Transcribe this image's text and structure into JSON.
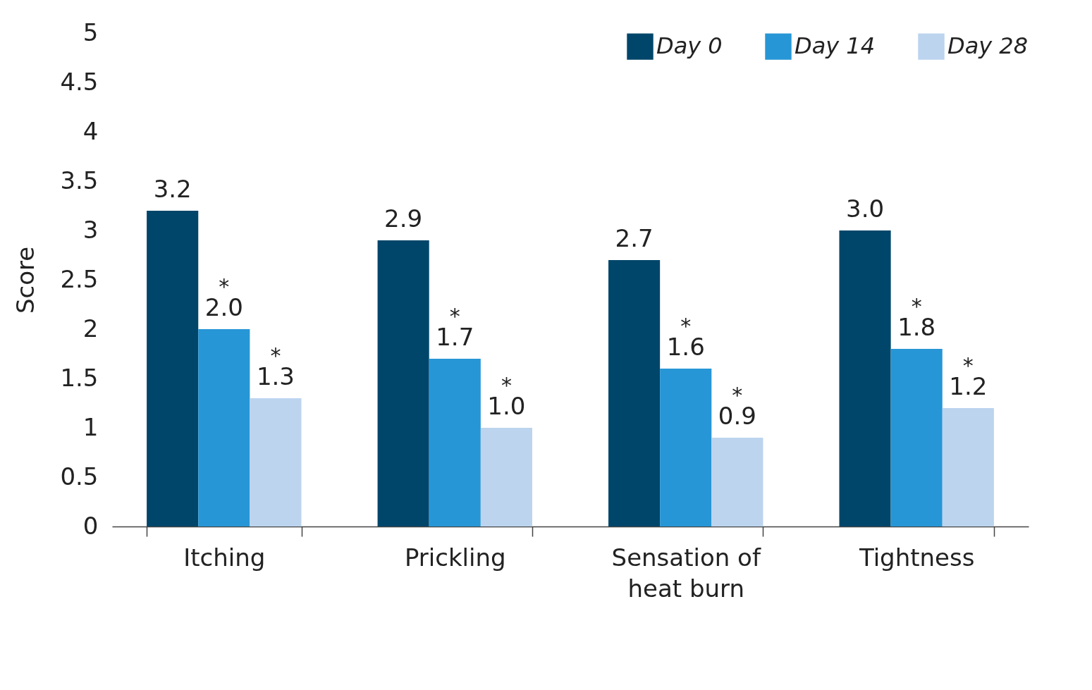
{
  "chart_data": {
    "type": "bar",
    "ylabel": "Score",
    "categories": [
      "Itching",
      "Prickling",
      "Sensation of heat burn",
      "Tightness"
    ],
    "series": [
      {
        "name": "Day 0",
        "color": "#00466a",
        "values": [
          3.2,
          2.9,
          2.7,
          3.0
        ],
        "value_labels": [
          "3.2",
          "2.9",
          "2.7",
          "3.0"
        ]
      },
      {
        "name": "Day 14",
        "color": "#2796d6",
        "values": [
          2.0,
          1.7,
          1.6,
          1.8
        ],
        "value_labels": [
          "2.0",
          "1.7",
          "1.6",
          "1.8"
        ]
      },
      {
        "name": "Day 28",
        "color": "#bcd4ee",
        "values": [
          1.3,
          1.0,
          0.9,
          1.2
        ],
        "value_labels": [
          "1.3",
          "1.0",
          "0.9",
          "1.2"
        ]
      }
    ],
    "ylim": [
      0,
      5
    ],
    "yticks": [
      0,
      0.5,
      1,
      1.5,
      2,
      2.5,
      3,
      3.5,
      4,
      4.5,
      5
    ],
    "legend": "top right",
    "annotations": [
      "*",
      "*",
      "*",
      "*",
      "*",
      "*",
      "*",
      "*"
    ]
  }
}
